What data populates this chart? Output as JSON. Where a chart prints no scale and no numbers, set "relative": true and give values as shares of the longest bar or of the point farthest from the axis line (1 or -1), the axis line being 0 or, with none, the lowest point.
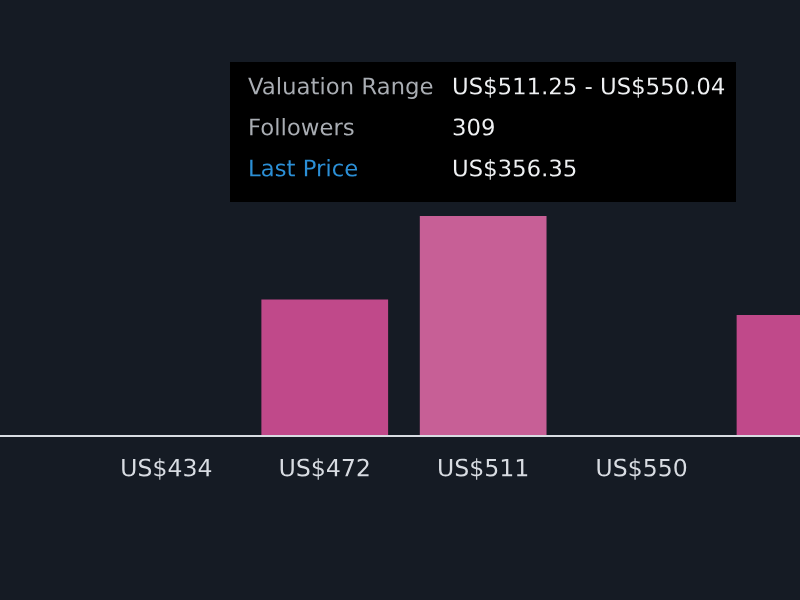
{
  "chart_data": {
    "type": "bar",
    "relative": true,
    "categories": [
      null,
      "US$434",
      "US$472",
      "US$511",
      "US$550",
      null
    ],
    "values": [
      0,
      0,
      0.62,
      1,
      0,
      0.55
    ],
    "colors": [
      "#c0498a",
      "#c0498a",
      "#c0498a",
      "#c75f96",
      "#c0498a",
      "#c0498a"
    ],
    "annotations": [
      "Valuation Range",
      "US$511.25 - US$550.04",
      "Followers",
      "309",
      "Last Price",
      "US$356.35"
    ],
    "grid": false,
    "legend": false
  }
}
